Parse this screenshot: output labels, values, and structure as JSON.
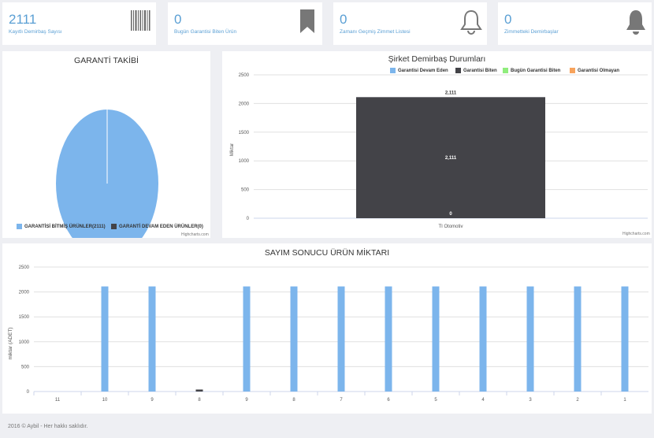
{
  "stats": [
    {
      "value": "2111",
      "label": "Kayıtlı Demirbaş Sayısı",
      "icon": "barcode-icon"
    },
    {
      "value": "0",
      "label": "Bugün Garantisi Biten Ürün",
      "icon": "bookmark-icon"
    },
    {
      "value": "0",
      "label": "Zamanı Geçmiş Zimmet Listesi",
      "icon": "bell-outline-icon"
    },
    {
      "value": "0",
      "label": "Zimmetteki Demirbaşlar",
      "icon": "bell-icon"
    }
  ],
  "pie": {
    "title": "GARANTİ TAKİBİ",
    "credits": "Highcharts.com",
    "legend": [
      {
        "label": "GARANTİSİ BİTMİŞ ÜRÜNLER(2111)",
        "color": "#7cb5ec"
      },
      {
        "label": "GARANTİ DEVAM EDEN ÜRÜNLER(0)",
        "color": "#434348"
      }
    ]
  },
  "company_chart": {
    "title": "Şirket Demirbaş Durumları",
    "ylabel": "Miktar",
    "credits": "Highcharts.com",
    "category": "TI Otomotiv",
    "ticks": [
      "0",
      "500",
      "1000",
      "1500",
      "2000",
      "2500"
    ],
    "legend": [
      {
        "label": "Garantisi Devam Eden",
        "color": "#7cb5ec"
      },
      {
        "label": "Garantisi Biten",
        "color": "#434348"
      },
      {
        "label": "Bugün Garantisi Biten",
        "color": "#90ed7d"
      },
      {
        "label": "Garantisi Olmayan",
        "color": "#f7a35c"
      }
    ],
    "labels": {
      "top": "2,111",
      "middle": "2,111",
      "bottom": "0"
    }
  },
  "count_chart": {
    "title": "SAYIM SONUCU ÜRÜN MİKTARI",
    "ylabel": "miktar (ADET)",
    "ticks": [
      "0",
      "500",
      "1000",
      "1500",
      "2000",
      "2500"
    ]
  },
  "chart_data": [
    {
      "type": "pie",
      "title": "GARANTİ TAKİBİ",
      "categories": [
        "GARANTİSİ BİTMİŞ ÜRÜNLER(2111)",
        "GARANTİ DEVAM EDEN ÜRÜNLER(0)"
      ],
      "values": [
        2111,
        0
      ]
    },
    {
      "type": "bar",
      "title": "Şirket Demirbaş Durumları",
      "ylabel": "Miktar",
      "categories": [
        "TI Otomotiv"
      ],
      "ylim": [
        0,
        2500
      ],
      "series": [
        {
          "name": "Garantisi Devam Eden",
          "values": [
            0
          ]
        },
        {
          "name": "Garantisi Biten",
          "values": [
            2111
          ]
        },
        {
          "name": "Bugün Garantisi Biten",
          "values": [
            0
          ]
        },
        {
          "name": "Garantisi Olmayan",
          "values": [
            0
          ]
        }
      ]
    },
    {
      "type": "bar",
      "title": "SAYIM SONUCU ÜRÜN MİKTARI",
      "ylabel": "miktar (ADET)",
      "categories": [
        "11",
        "10",
        "9",
        "8",
        "9",
        "8",
        "7",
        "6",
        "5",
        "4",
        "3",
        "2",
        "1"
      ],
      "ylim": [
        0,
        2500
      ],
      "series": [
        {
          "values": [
            0,
            2111,
            2111,
            0,
            2111,
            2111,
            2111,
            2111,
            2111,
            2111,
            2111,
            2111,
            2111
          ]
        },
        {
          "values": [
            0,
            0,
            0,
            40,
            0,
            0,
            0,
            0,
            0,
            0,
            0,
            0,
            0
          ]
        }
      ]
    }
  ],
  "footer": "2016 © Aybil - Her hakkı saklıdır."
}
